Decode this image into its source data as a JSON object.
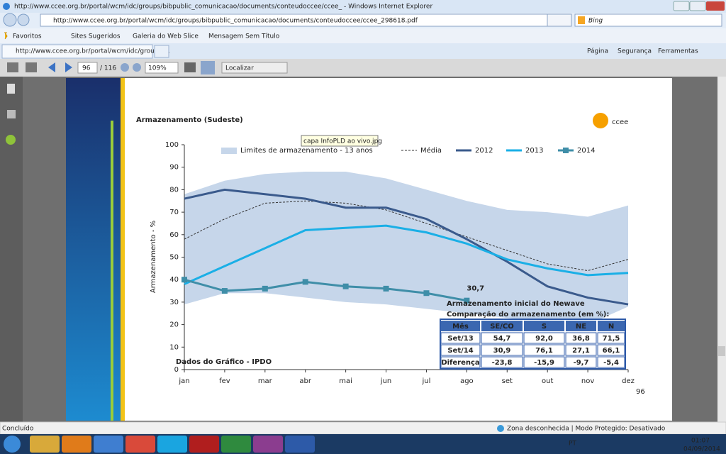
{
  "browser": {
    "window_title": "http://www.ccee.org.br/portal/wcm/idc/groups/bibpublic_comunicacao/documents/conteudoccee/ccee_ - Windows Internet Explorer",
    "address": "http://www.ccee.org.br/portal/wcm/idc/groups/bibpublic_comunicacao/documents/conteudoccee/ccee_298618.pdf",
    "search": "Bing",
    "favorites": [
      "Favoritos",
      "Sites Sugeridos",
      "Galeria do Web Slice",
      "Mensagem Sem Título"
    ],
    "tab": "http://www.ccee.org.br/portal/wcm/idc/groups/...",
    "menus": [
      "Página",
      "Segurança",
      "Ferramentas"
    ]
  },
  "pdf_toolbar": {
    "page": "96",
    "total": "/ 116",
    "zoom": "109%",
    "find": "Localizar"
  },
  "slide": {
    "title": "Armazenamento (Sudeste)",
    "logo": "ccee",
    "tooltip": "capa InfoPLD ao vivo.jpg",
    "source": "Dados do Gráfico - IPDO",
    "page_number": "96"
  },
  "chart_data": {
    "type": "line",
    "ylabel": "Armazenamento - %",
    "categories": [
      "jan",
      "fev",
      "mar",
      "abr",
      "mai",
      "jun",
      "jul",
      "ago",
      "set",
      "out",
      "nov",
      "dez"
    ],
    "ylim": [
      0,
      100
    ],
    "yticks": [
      0,
      10,
      20,
      30,
      40,
      50,
      60,
      70,
      80,
      90,
      100
    ],
    "grid": false,
    "series": [
      {
        "name": "Limites de armazenamento - 13 anos",
        "color": "#c6d6ea",
        "lower": [
          29,
          34,
          34,
          32,
          30,
          29,
          27,
          25,
          23,
          21,
          20,
          28
        ],
        "upper": [
          78,
          84,
          87,
          88,
          88,
          85,
          80,
          75,
          71,
          70,
          68,
          73
        ]
      },
      {
        "name": "Média",
        "color": "#333333",
        "style": "dashed",
        "values": [
          58,
          67,
          74,
          75,
          74,
          71,
          65,
          59,
          53,
          47,
          44,
          49
        ]
      },
      {
        "name": "2012",
        "color": "#3a5a8c",
        "values": [
          76,
          80,
          78,
          76,
          72,
          72,
          67,
          58,
          48,
          37,
          32,
          29
        ]
      },
      {
        "name": "2013",
        "color": "#1aafe6",
        "values": [
          38,
          46,
          54,
          62,
          63,
          64,
          61,
          56,
          49,
          45,
          42,
          43
        ]
      },
      {
        "name": "2014",
        "color": "#3f8ea8",
        "marker": "square",
        "values": [
          40,
          35,
          36,
          39,
          37,
          36,
          34,
          30.7,
          null,
          null,
          null,
          null
        ],
        "value_labels": [
          null,
          null,
          null,
          null,
          null,
          null,
          null,
          "30,7",
          null,
          null,
          null,
          null
        ]
      }
    ]
  },
  "table": {
    "title": [
      "Armazenamento inicial do Newave",
      "Comparação do armazenamento (em %):"
    ],
    "header": [
      "Mês",
      "SE/CO",
      "S",
      "NE",
      "N"
    ],
    "rows": [
      [
        "Set/13",
        "54,7",
        "92,0",
        "36,8",
        "71,5"
      ],
      [
        "Set/14",
        "30,9",
        "76,1",
        "27,1",
        "66,1"
      ],
      [
        "Diferença",
        "-23,8",
        "-15,9",
        "-9,7",
        "-5,4"
      ]
    ]
  },
  "status": {
    "left": "Concluído",
    "zone": "Zona desconhecida | Modo Protegido: Desativado"
  },
  "taskbar": {
    "lang": "PT",
    "time": "01:07",
    "date": "04/09/2014"
  }
}
